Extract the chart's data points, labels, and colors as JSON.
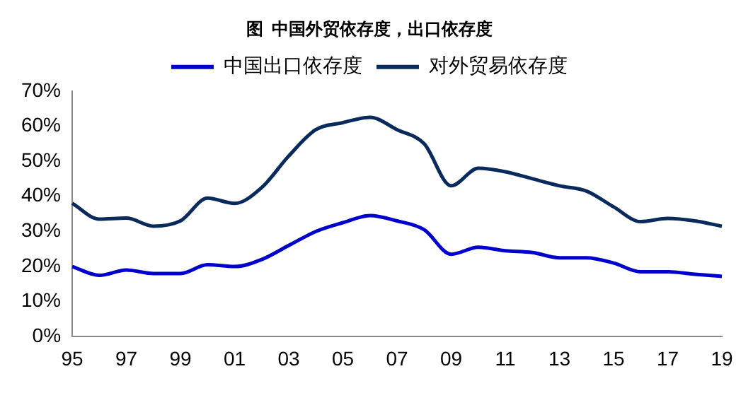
{
  "chart_data": {
    "type": "line",
    "title": "图  中国外贸依存度，出口依存度",
    "categories": [
      "95",
      null,
      "97",
      null,
      "99",
      null,
      "01",
      null,
      "03",
      null,
      "05",
      null,
      "07",
      null,
      "09",
      null,
      "11",
      null,
      "13",
      null,
      "15",
      null,
      "17",
      null,
      "19"
    ],
    "series": [
      {
        "name": "中国出口依存度",
        "color": "#0000cc",
        "values": [
          20,
          17.5,
          19,
          18,
          18,
          20.5,
          20,
          22,
          26,
          30,
          32.5,
          34.5,
          33,
          30.5,
          23.5,
          25.5,
          24.5,
          24,
          22.5,
          22.5,
          21,
          18.5,
          18.5,
          17.8,
          17.2
        ]
      },
      {
        "name": "对外贸易依存度",
        "color": "#0a2a5e",
        "values": [
          38,
          33.5,
          33.8,
          31.5,
          33,
          39.5,
          38,
          42.5,
          51.5,
          59,
          61,
          62.5,
          59,
          55,
          43,
          48,
          47,
          45,
          43,
          41.5,
          37,
          32.8,
          33.7,
          33,
          31.5
        ]
      }
    ],
    "ylim": [
      0,
      70
    ],
    "yticks": [
      {
        "value": 0,
        "label": "0%"
      },
      {
        "value": 10,
        "label": "10%"
      },
      {
        "value": 20,
        "label": "20%"
      },
      {
        "value": 30,
        "label": "30%"
      },
      {
        "value": 40,
        "label": "40%"
      },
      {
        "value": 50,
        "label": "50%"
      },
      {
        "value": 60,
        "label": "60%"
      },
      {
        "value": 70,
        "label": "70%"
      }
    ],
    "grid": false,
    "legend": "top",
    "marker": "none",
    "line_style": "solid"
  }
}
